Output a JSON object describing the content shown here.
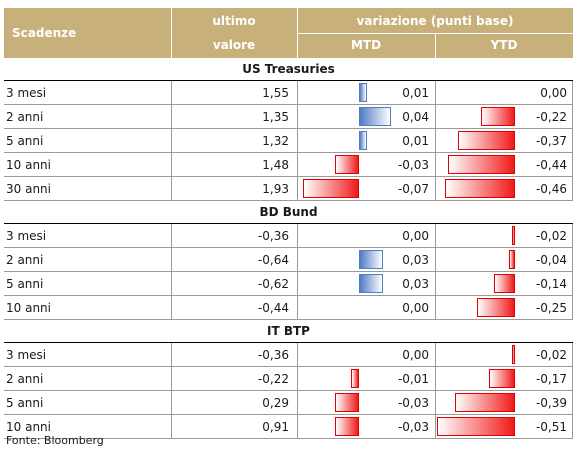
{
  "header": {
    "scadenze": "Scadenze",
    "ultimo_line1": "ultimo",
    "ultimo_line2": "valore",
    "variazione": "variazione (punti base)",
    "mtd": "MTD",
    "ytd": "YTD"
  },
  "bar_scale": {
    "mtd_max": 0.07,
    "ytd_max": 0.51
  },
  "colors": {
    "header_bg": "#c8b07b",
    "positive_bar": "#4f7cc4",
    "negative_bar": "#f01a1a"
  },
  "sections": [
    {
      "title": "US Treasuries",
      "rows": [
        {
          "label": "3 mesi",
          "value": "1,55",
          "mtd": "0,01",
          "ytd": "0,00",
          "mtd_num": 0.01,
          "ytd_num": 0.0
        },
        {
          "label": "2 anni",
          "value": "1,35",
          "mtd": "0,04",
          "ytd": "-0,22",
          "mtd_num": 0.04,
          "ytd_num": -0.22
        },
        {
          "label": "5 anni",
          "value": "1,32",
          "mtd": "0,01",
          "ytd": "-0,37",
          "mtd_num": 0.01,
          "ytd_num": -0.37
        },
        {
          "label": "10 anni",
          "value": "1,48",
          "mtd": "-0,03",
          "ytd": "-0,44",
          "mtd_num": -0.03,
          "ytd_num": -0.44
        },
        {
          "label": "30 anni",
          "value": "1,93",
          "mtd": "-0,07",
          "ytd": "-0,46",
          "mtd_num": -0.07,
          "ytd_num": -0.46
        }
      ]
    },
    {
      "title": "BD Bund",
      "rows": [
        {
          "label": "3 mesi",
          "value": "-0,36",
          "mtd": "0,00",
          "ytd": "-0,02",
          "mtd_num": 0.0,
          "ytd_num": -0.02
        },
        {
          "label": "2 anni",
          "value": "-0,64",
          "mtd": "0,03",
          "ytd": "-0,04",
          "mtd_num": 0.03,
          "ytd_num": -0.04
        },
        {
          "label": "5 anni",
          "value": "-0,62",
          "mtd": "0,03",
          "ytd": "-0,14",
          "mtd_num": 0.03,
          "ytd_num": -0.14
        },
        {
          "label": "10 anni",
          "value": "-0,44",
          "mtd": "0,00",
          "ytd": "-0,25",
          "mtd_num": 0.0,
          "ytd_num": -0.25
        }
      ]
    },
    {
      "title": "IT BTP",
      "rows": [
        {
          "label": "3 mesi",
          "value": "-0,36",
          "mtd": "0,00",
          "ytd": "-0,02",
          "mtd_num": 0.0,
          "ytd_num": -0.02
        },
        {
          "label": "2 anni",
          "value": "-0,22",
          "mtd": "-0,01",
          "ytd": "-0,17",
          "mtd_num": -0.01,
          "ytd_num": -0.17
        },
        {
          "label": "5 anni",
          "value": "0,29",
          "mtd": "-0,03",
          "ytd": "-0,39",
          "mtd_num": -0.03,
          "ytd_num": -0.39
        },
        {
          "label": "10 anni",
          "value": "0,91",
          "mtd": "-0,03",
          "ytd": "-0,51",
          "mtd_num": -0.03,
          "ytd_num": -0.51
        }
      ]
    }
  ],
  "footer": "Fonte: Bloomberg"
}
